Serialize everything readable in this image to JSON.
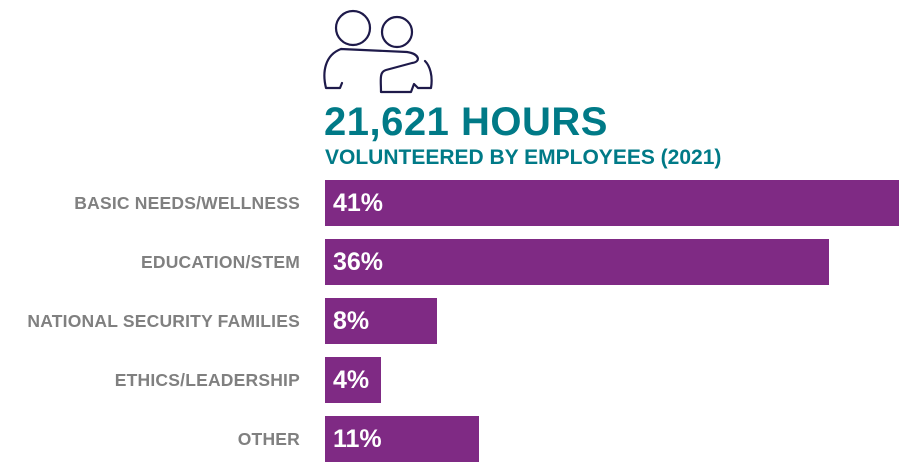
{
  "chart_data": {
    "type": "bar",
    "orientation": "horizontal",
    "title": "21,621 HOURS",
    "subtitle": "VOLUNTEERED BY EMPLOYEES (2021)",
    "categories": [
      "BASIC NEEDS/WELLNESS",
      "EDUCATION/STEM",
      "NATIONAL SECURITY FAMILIES",
      "ETHICS/LEADERSHIP",
      "OTHER"
    ],
    "values": [
      41,
      36,
      8,
      4,
      11
    ],
    "value_labels": [
      "41%",
      "36%",
      "8%",
      "4%",
      "11%"
    ],
    "xlim": [
      0,
      41
    ],
    "grid": false,
    "xlabel": "",
    "ylabel": ""
  },
  "icon": "two-people-embrace-icon",
  "colors": {
    "bar": "#7F2A84",
    "title": "#007A87",
    "category_label": "#808080",
    "icon": "#1E1A4A",
    "value_label": "#FFFFFF"
  }
}
